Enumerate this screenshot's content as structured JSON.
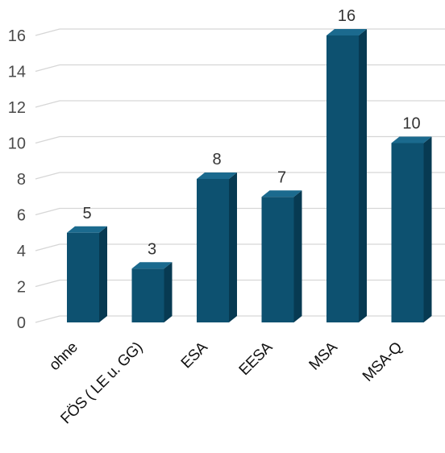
{
  "chart_data": {
    "type": "bar",
    "title": "",
    "xlabel": "",
    "ylabel": "",
    "categories": [
      "ohne",
      "FÖS ( LE u. GG)",
      "ESA",
      "EESA",
      "MSA",
      "MSA-Q"
    ],
    "values": [
      5,
      3,
      8,
      7,
      16,
      10
    ],
    "ylim": [
      0,
      16
    ],
    "yticks": [
      0,
      2,
      4,
      6,
      8,
      10,
      12,
      14,
      16
    ],
    "grid": true,
    "style": "3d-column",
    "colors": {
      "bar_front": "#0d5170",
      "bar_side": "#073a52",
      "bar_top": "#1b6a8e",
      "grid": "#d6d6d6"
    }
  }
}
